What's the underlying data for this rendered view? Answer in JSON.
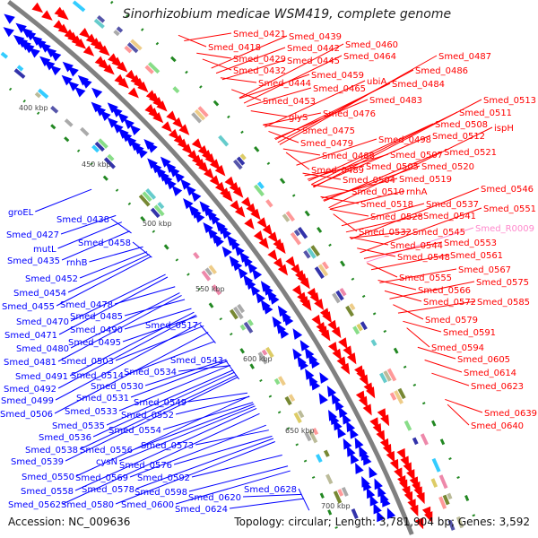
{
  "title": "Sinorhizobium medicae WSM419, complete genome",
  "footer": {
    "accession": "Accession: NC_009636",
    "topology": "Topology: circular; Length: 3,781,904 bp; Genes: 3,592"
  },
  "colors": {
    "forward": "#ff0000",
    "reverse": "#0000ff",
    "rna": "#ff88cc",
    "backbone": "#808080",
    "ticks": "#228822"
  },
  "ticks": [
    "400 kbp",
    "450 kbp",
    "500 kbp",
    "550 kbp",
    "600 kbp",
    "650 kbp",
    "700 kbp"
  ],
  "labels": {
    "forward": [
      "Smed_0421",
      "Smed_0418",
      "Smed_0439",
      "Smed_0442",
      "Smed_0460",
      "Smed_0429",
      "Smed_0445",
      "Smed_0464",
      "Smed_0487",
      "Smed_0432",
      "Smed_0459",
      "Smed_0486",
      "Smed_0444",
      "Smed_0465",
      "ubiA",
      "Smed_0484",
      "Smed_0453",
      "Smed_0483",
      "Smed_0513",
      "glyS",
      "Smed_0476",
      "Smed_0511",
      "Smed_0508",
      "ispH",
      "Smed_0475",
      "Smed_0498",
      "Smed_0512",
      "Smed_0479",
      "Smed_0521",
      "Smed_0507",
      "Smed_0488",
      "Smed_0505",
      "Smed_0520",
      "Smed_0489",
      "Smed_0504",
      "Smed_0519",
      "Smed_0510",
      "rnhA",
      "Smed_0546",
      "Smed_0518",
      "Smed_0537",
      "Smed_0551",
      "Smed_0528",
      "Smed_0541",
      "Smed_R0009",
      "Smed_0532",
      "Smed_0545",
      "Smed_0553",
      "Smed_0544",
      "Smed_0561",
      "Smed_0548",
      "Smed_0567",
      "Smed_0575",
      "Smed_0555",
      "Smed_0566",
      "Smed_0572",
      "Smed_0585",
      "Smed_0579",
      "Smed_0591",
      "Smed_0594",
      "Smed_0605",
      "Smed_0614",
      "Smed_0623",
      "Smed_0639",
      "Smed_0640"
    ],
    "reverse": [
      "groEL",
      "Smed_0438",
      "Smed_0427",
      "mutL",
      "Smed_0458",
      "Smed_0435",
      "rnhB",
      "Smed_0452",
      "Smed_0454",
      "Smed_0478",
      "Smed_0455",
      "Smed_0485",
      "Smed_0470",
      "Smed_0490",
      "Smed_0517",
      "Smed_0471",
      "Smed_0495",
      "Smed_0480",
      "Smed_0543",
      "Smed_0503",
      "Smed_0481",
      "Smed_0534",
      "Smed_0514",
      "Smed_0491",
      "Smed_0530",
      "Smed_0492",
      "Smed_0531",
      "Smed_0549",
      "Smed_0499",
      "Smed_0533",
      "Smed_0552",
      "Smed_0506",
      "Smed_0535",
      "Smed_0554",
      "Smed_0536",
      "Smed_0573",
      "Smed_0538",
      "Smed_0556",
      "Smed_0539",
      "cysN",
      "Smed_0576",
      "Smed_0550",
      "Smed_0569",
      "Smed_0592",
      "Smed_0578",
      "Smed_0598",
      "Smed_0558",
      "Smed_0620",
      "Smed_0628",
      "Smed_0562",
      "Smed_0580",
      "Smed_0600",
      "Smed_0624"
    ]
  }
}
